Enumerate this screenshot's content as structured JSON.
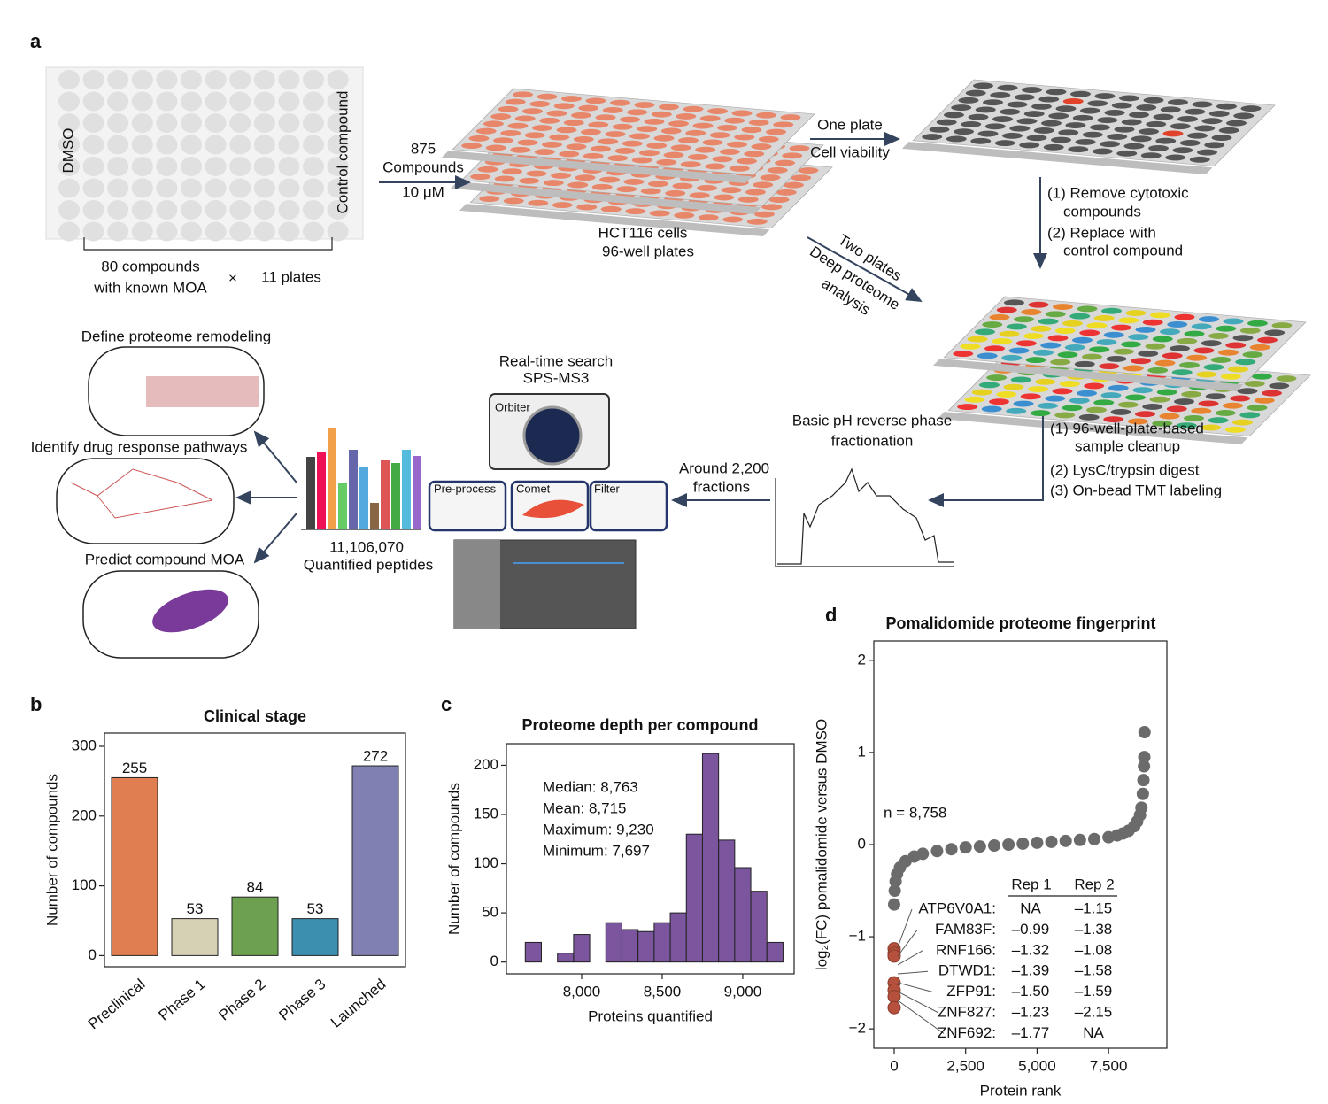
{
  "diagram": {
    "panel": "a",
    "dmso": "DMSO",
    "control": "Control compound",
    "compounds80": [
      "80 compounds",
      "with known MOA"
    ],
    "times": "×",
    "plates11": "11 plates",
    "treat": [
      "875",
      "Compounds",
      "10 μM"
    ],
    "cells": [
      "HCT116 cells",
      "96-well plates"
    ],
    "oneplate": "One plate",
    "viability": "Cell viability",
    "remove": [
      "(1) Remove cytotoxic",
      "compounds",
      "(2) Replace with",
      "control compound"
    ],
    "twoplates": "Two plates",
    "deep": [
      "Deep proteome",
      "analysis"
    ],
    "cleanup": [
      "(1) 96-well-plate-based",
      "sample cleanup",
      "(2) LysC/trypsin digest",
      "(3) On-bead TMT labeling"
    ],
    "fractionation": [
      "Basic pH reverse phase",
      "fractionation"
    ],
    "fractions": [
      "Around 2,200",
      "fractions"
    ],
    "rts": [
      "Real-time search",
      "SPS-MS3"
    ],
    "orbiter": "Orbiter",
    "preprocess": "Pre-process",
    "comet": "Comet",
    "filter": "Filter",
    "peptides": [
      "11,106,070",
      "Quantified peptides"
    ],
    "remodel": "Define proteome remodeling",
    "pathways": "Identify drug response pathways",
    "moa": "Predict compound MOA"
  },
  "chart_data": [
    {
      "type": "bar",
      "panel": "b",
      "title": "Clinical stage",
      "y_label": "Number of compounds",
      "categories": [
        "Preclinical",
        "Phase 1",
        "Phase 2",
        "Phase 3",
        "Launched"
      ],
      "values": [
        255,
        53,
        84,
        53,
        272
      ],
      "colors": [
        "#e07e52",
        "#d6d0b4",
        "#6ea14f",
        "#3d8fb0",
        "#8081b2"
      ],
      "ylim": [
        -16,
        319
      ],
      "yticks": [
        0,
        100,
        200,
        300
      ]
    },
    {
      "type": "histogram",
      "panel": "c",
      "title": "Proteome depth per compound",
      "x_label": "Proteins quantified",
      "y_label": "Number of compounds",
      "bins": [
        7650,
        7750,
        7850,
        7950,
        8050,
        8150,
        8250,
        8350,
        8450,
        8550,
        8650,
        8750,
        8850,
        8950,
        9050,
        9150,
        9250
      ],
      "counts": [
        20,
        0,
        9,
        28,
        0,
        40,
        33,
        31,
        40,
        50,
        130,
        212,
        124,
        96,
        72,
        20
      ],
      "color": "#7b559d",
      "annotations": [
        "Median: 8,763",
        "Mean: 8,715",
        "Maximum: 9,230",
        "Minimum: 7,697"
      ],
      "xlim": [
        7533,
        9319
      ],
      "ylim": [
        -12,
        222
      ],
      "xticks": [
        {
          "value": 8000,
          "label": "8,000"
        },
        {
          "value": 8500,
          "label": "8,500"
        },
        {
          "value": 9000,
          "label": "9,000"
        }
      ],
      "yticks": [
        0,
        50,
        100,
        150,
        200
      ]
    },
    {
      "type": "scatter",
      "panel": "d",
      "title": "Pomalidomide proteome fingerprint",
      "x_label": "Protein rank",
      "y_label": "log₂(FC) pomalidomide versus DMSO",
      "annotation": "n = 8,758",
      "series": [
        {
          "color": "#6b6b6b",
          "x": [
            0,
            20,
            50,
            100,
            200,
            400,
            700,
            1000,
            1500,
            2000,
            2500,
            3000,
            3500,
            4000,
            4500,
            5000,
            5500,
            6000,
            6500,
            7000,
            7500,
            7800,
            8000,
            8200,
            8400,
            8500,
            8600,
            8650,
            8700,
            8720,
            8740,
            8750,
            8758
          ],
          "values": [
            -0.65,
            -0.5,
            -0.4,
            -0.32,
            -0.25,
            -0.18,
            -0.13,
            -0.1,
            -0.07,
            -0.05,
            -0.03,
            -0.02,
            -0.01,
            0,
            0.01,
            0.02,
            0.03,
            0.04,
            0.05,
            0.06,
            0.08,
            0.1,
            0.12,
            0.15,
            0.2,
            0.25,
            0.32,
            0.4,
            0.55,
            0.7,
            0.85,
            0.95,
            1.22
          ]
        },
        {
          "color": "#b5513d",
          "x": [
            0,
            0,
            0,
            0,
            0,
            0,
            0
          ],
          "values": [
            -1.13,
            -1.18,
            -1.21,
            -1.5,
            -1.58,
            -1.65,
            -1.77
          ]
        }
      ],
      "table": {
        "header": [
          "Rep 1",
          "Rep 2"
        ],
        "rows": [
          [
            "ATP6V0A1:",
            "NA",
            "–1.15"
          ],
          [
            "FAM83F:",
            "–0.99",
            "–1.38"
          ],
          [
            "RNF166:",
            "–1.32",
            "–1.08"
          ],
          [
            "DTWD1:",
            "–1.39",
            "–1.58"
          ],
          [
            "ZFP91:",
            "–1.50",
            "–1.59"
          ],
          [
            "ZNF827:",
            "–1.23",
            "–2.15"
          ],
          [
            "ZNF692:",
            "–1.77",
            "NA"
          ]
        ]
      },
      "xlim": [
        -712,
        9540
      ],
      "ylim": [
        -2.21,
        2.21
      ],
      "xticks": [
        0,
        {
          "value": 2500,
          "label": "2,500"
        },
        {
          "value": 5000,
          "label": "5,000"
        },
        {
          "value": 7500,
          "label": "7,500"
        }
      ],
      "yticks": [
        2,
        1,
        0,
        {
          "value": -1,
          "label": "−1"
        },
        {
          "value": -2,
          "label": "−2"
        }
      ]
    }
  ]
}
